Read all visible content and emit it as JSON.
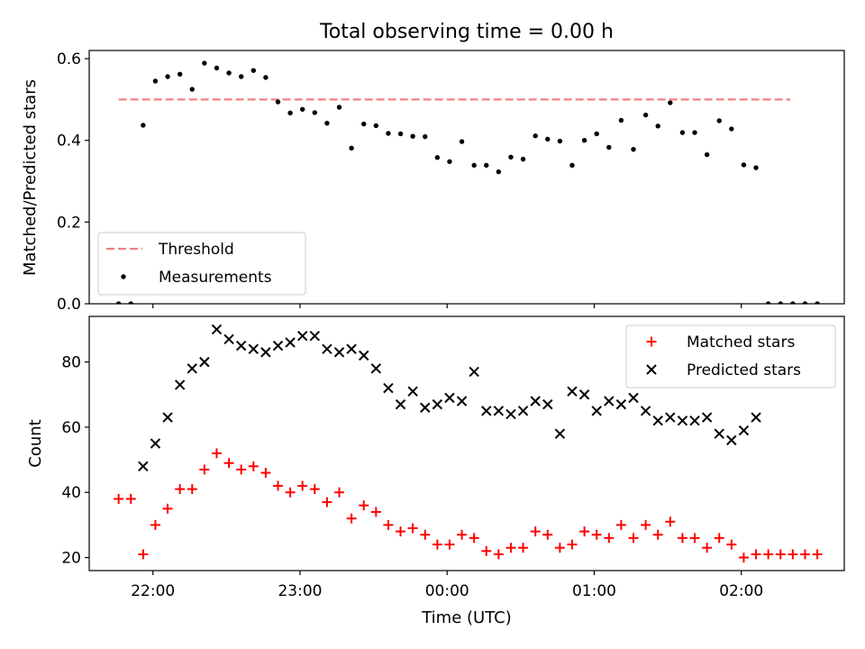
{
  "chart_data": [
    {
      "type": "scatter",
      "title": "Total observing time = 0.00 h",
      "xlabel": "",
      "ylabel": "Matched/Predicted stars",
      "xlim": [
        "21:34",
        "02:42"
      ],
      "ylim": [
        0,
        0.62
      ],
      "xticks": [
        "22:00",
        "23:00",
        "00:00",
        "01:00",
        "02:00"
      ],
      "yticks": [
        "0.0",
        "0.2",
        "0.4",
        "0.6"
      ],
      "legend": {
        "placement": "lower-left",
        "entries": [
          "Threshold",
          "Measurements"
        ]
      },
      "series": [
        {
          "name": "Threshold",
          "style": "dashed-line",
          "color": "#f08080",
          "x": [
            "21:46",
            "02:20"
          ],
          "y": [
            0.5,
            0.5
          ]
        },
        {
          "name": "Measurements",
          "style": "dot",
          "color": "#000000",
          "x": [
            "21:46",
            "21:51",
            "21:56",
            "22:01",
            "22:06",
            "22:11",
            "22:16",
            "22:21",
            "22:26",
            "22:31",
            "22:36",
            "22:41",
            "22:46",
            "22:51",
            "22:56",
            "23:01",
            "23:06",
            "23:11",
            "23:16",
            "23:21",
            "23:26",
            "23:31",
            "23:36",
            "23:41",
            "23:46",
            "23:51",
            "23:56",
            "00:01",
            "00:06",
            "00:11",
            "00:16",
            "00:21",
            "00:26",
            "00:31",
            "00:36",
            "00:41",
            "00:46",
            "00:51",
            "00:56",
            "01:01",
            "01:06",
            "01:11",
            "01:16",
            "01:21",
            "01:26",
            "01:31",
            "01:36",
            "01:41",
            "01:46",
            "01:51",
            "01:56",
            "02:01",
            "02:06",
            "02:11",
            "02:16",
            "02:21",
            "02:26",
            "02:31"
          ],
          "y": [
            0.0,
            0.0,
            0.437,
            0.545,
            0.556,
            0.562,
            0.525,
            0.589,
            0.577,
            0.565,
            0.556,
            0.571,
            0.554,
            0.494,
            0.467,
            0.476,
            0.468,
            0.442,
            0.481,
            0.381,
            0.44,
            0.436,
            0.417,
            0.416,
            0.41,
            0.409,
            0.358,
            0.348,
            0.397,
            0.339,
            0.339,
            0.323,
            0.359,
            0.354,
            0.411,
            0.403,
            0.398,
            0.339,
            0.4,
            0.416,
            0.383,
            0.449,
            0.378,
            0.462,
            0.435,
            0.492,
            0.419,
            0.419,
            0.365,
            0.448,
            0.428,
            0.34,
            0.333,
            0.0,
            0.0,
            0.0,
            0.0,
            0.0
          ]
        }
      ]
    },
    {
      "type": "scatter",
      "title": "",
      "xlabel": "Time (UTC)",
      "ylabel": "Count",
      "xlim": [
        "21:34",
        "02:42"
      ],
      "ylim": [
        16,
        94
      ],
      "xticks": [
        "22:00",
        "23:00",
        "00:00",
        "01:00",
        "02:00"
      ],
      "yticks": [
        "20",
        "40",
        "60",
        "80"
      ],
      "legend": {
        "placement": "upper-right",
        "entries": [
          "Matched stars",
          "Predicted stars"
        ]
      },
      "series": [
        {
          "name": "Matched stars",
          "marker": "plus",
          "color": "#ff0000",
          "x": [
            "21:46",
            "21:51",
            "21:56",
            "22:01",
            "22:06",
            "22:11",
            "22:16",
            "22:21",
            "22:26",
            "22:31",
            "22:36",
            "22:41",
            "22:46",
            "22:51",
            "22:56",
            "23:01",
            "23:06",
            "23:11",
            "23:16",
            "23:21",
            "23:26",
            "23:31",
            "23:36",
            "23:41",
            "23:46",
            "23:51",
            "23:56",
            "00:01",
            "00:06",
            "00:11",
            "00:16",
            "00:21",
            "00:26",
            "00:31",
            "00:36",
            "00:41",
            "00:46",
            "00:51",
            "00:56",
            "01:01",
            "01:06",
            "01:11",
            "01:16",
            "01:21",
            "01:26",
            "01:31",
            "01:36",
            "01:41",
            "01:46",
            "01:51",
            "01:56",
            "02:01",
            "02:06",
            "02:11",
            "02:16",
            "02:21",
            "02:26",
            "02:31"
          ],
          "y": [
            38,
            38,
            21,
            30,
            35,
            41,
            41,
            47,
            52,
            49,
            47,
            48,
            46,
            42,
            40,
            42,
            41,
            37,
            40,
            32,
            36,
            34,
            30,
            28,
            29,
            27,
            24,
            24,
            27,
            26,
            22,
            21,
            23,
            23,
            28,
            27,
            23,
            24,
            28,
            27,
            26,
            30,
            26,
            30,
            27,
            31,
            26,
            26,
            23,
            26,
            24,
            20,
            21,
            21,
            21,
            21,
            21,
            21
          ]
        },
        {
          "name": "Predicted stars",
          "marker": "x",
          "color": "#000000",
          "x": [
            "21:56",
            "22:01",
            "22:06",
            "22:11",
            "22:16",
            "22:21",
            "22:26",
            "22:31",
            "22:36",
            "22:41",
            "22:46",
            "22:51",
            "22:56",
            "23:01",
            "23:06",
            "23:11",
            "23:16",
            "23:21",
            "23:26",
            "23:31",
            "23:36",
            "23:41",
            "23:46",
            "23:51",
            "23:56",
            "00:01",
            "00:06",
            "00:11",
            "00:16",
            "00:21",
            "00:26",
            "00:31",
            "00:36",
            "00:41",
            "00:46",
            "00:51",
            "00:56",
            "01:01",
            "01:06",
            "01:11",
            "01:16",
            "01:21",
            "01:26",
            "01:31",
            "01:36",
            "01:41",
            "01:46",
            "01:51",
            "01:56",
            "02:01",
            "02:06"
          ],
          "y": [
            48,
            55,
            63,
            73,
            78,
            80,
            90,
            87,
            85,
            84,
            83,
            85,
            86,
            88,
            88,
            84,
            83,
            84,
            82,
            78,
            72,
            67,
            71,
            66,
            67,
            69,
            68,
            77,
            65,
            65,
            64,
            65,
            68,
            67,
            58,
            71,
            70,
            65,
            68,
            67,
            69,
            65,
            62,
            63,
            62,
            62,
            63,
            58,
            56,
            59,
            63
          ]
        }
      ]
    }
  ]
}
